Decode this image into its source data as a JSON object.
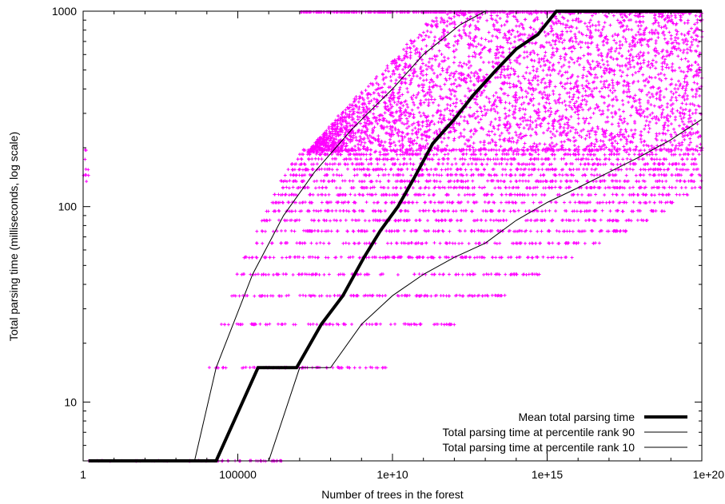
{
  "chart_data": {
    "type": "scatter",
    "title": "",
    "xlabel": "Number of trees in the forest",
    "ylabel": "Total parsing time (milliseconds, log scale)",
    "x_scale": "log",
    "y_scale": "log",
    "xlim": [
      1,
      1e+20
    ],
    "ylim": [
      5,
      1000
    ],
    "x_ticks": [
      {
        "value": 1,
        "label": "1"
      },
      {
        "value": 100000,
        "label": "100000"
      },
      {
        "value": 10000000000.0,
        "label": "1e+10"
      },
      {
        "value": 1000000000000000.0,
        "label": "1e+15"
      },
      {
        "value": 1e+20,
        "label": "1e+20"
      }
    ],
    "y_ticks": [
      {
        "value": 10,
        "label": "10"
      },
      {
        "value": 100,
        "label": "100"
      },
      {
        "value": 1000,
        "label": "1000"
      }
    ],
    "grid": false,
    "legend_position": "bottom-right",
    "colors": {
      "scatter": "#ff00ff",
      "mean": "#000000",
      "p90": "#000000",
      "p10": "#000000"
    },
    "series": [
      {
        "name": "Mean total parsing time",
        "kind": "line",
        "style": "thick",
        "x": [
          1.5,
          20000.0,
          450000.0,
          8000000.0,
          50000000.0,
          250000000.0,
          1200000000.0,
          4000000000.0,
          15000000000.0,
          50000000000.0,
          200000000000.0,
          1000000000000.0,
          4000000000000.0,
          20000000000000.0,
          100000000000000.0,
          500000000000000.0,
          2000000000000000.0,
          8000000000000000.0,
          3e+16,
          1e+17,
          1e+18,
          1e+19,
          1e+20
        ],
        "y": [
          5,
          5,
          15,
          15,
          25,
          35,
          55,
          75,
          100,
          140,
          210,
          280,
          370,
          490,
          640,
          760,
          1000,
          1000,
          1000,
          1000,
          1000,
          1000,
          1000
        ]
      },
      {
        "name": "Total parsing time at percentile rank 90",
        "kind": "line",
        "style": "thin",
        "x": [
          1.5,
          4000.0,
          20000.0,
          300000.0,
          3000000.0,
          30000000.0,
          500000000.0,
          10000000000.0,
          100000000000.0,
          1500000000000.0,
          10000000000000.0,
          100000000000000.0,
          1000000000000000.0,
          1e+20
        ],
        "y": [
          5,
          5,
          15,
          45,
          90,
          150,
          250,
          400,
          600,
          850,
          1000,
          1000,
          1000,
          1000
        ]
      },
      {
        "name": "Total parsing time at percentile rank 10",
        "kind": "line",
        "style": "thin",
        "x": [
          1.5,
          1000000.0,
          10000000.0,
          100000000.0,
          1000000000.0,
          10000000000.0,
          100000000000.0,
          1000000000000.0,
          10000000000000.0,
          100000000000000.0,
          1000000000000000.0,
          1e+16,
          1e+17,
          1e+18,
          1e+19,
          1e+20
        ],
        "y": [
          5,
          5,
          15,
          15,
          25,
          35,
          45,
          55,
          65,
          85,
          105,
          125,
          150,
          180,
          220,
          280
        ]
      }
    ]
  }
}
